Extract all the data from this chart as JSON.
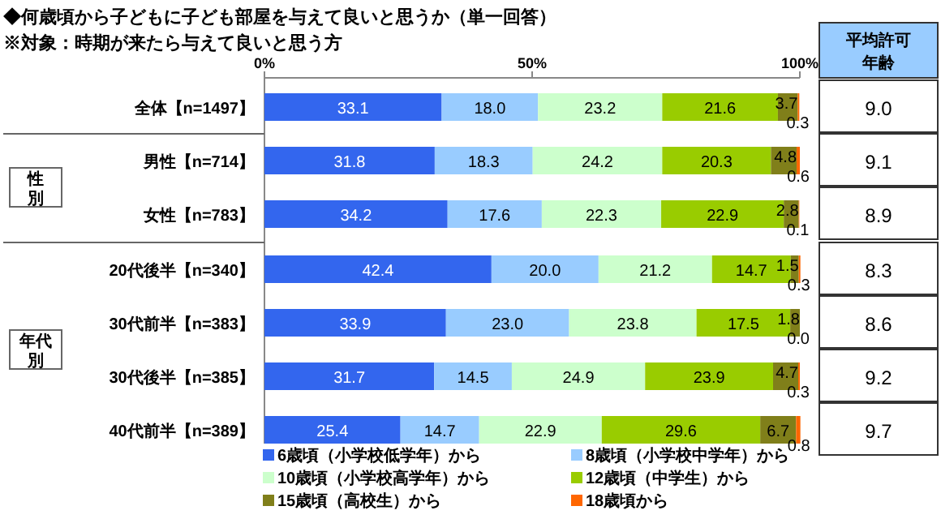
{
  "chart_data": [
    {
      "type": "bar",
      "orientation": "horizontal",
      "stacked": true,
      "title": "◆何歳頃から子どもに子ども部屋を与えて良いと思うか（単一回答）",
      "subtitle": "※対象：時期が来たら与えて良いと思う方",
      "categories": [
        "全体【n=1497】",
        "男性【n=714】",
        "女性【n=783】",
        "20代後半【n=340】",
        "30代前半【n=383】",
        "30代後半【n=385】",
        "40代前半【n=389】"
      ],
      "series": [
        {
          "name": "6歳頃（小学校低学年）から",
          "color": "#3366ee",
          "values": [
            33.1,
            31.8,
            34.2,
            42.4,
            33.9,
            31.7,
            25.4
          ],
          "value_labels": [
            "33.1",
            "31.8",
            "34.2",
            "42.4",
            "33.9",
            "31.7",
            "25.4"
          ]
        },
        {
          "name": "8歳頃（小学校中学年）から",
          "color": "#99ccff",
          "values": [
            18.0,
            18.3,
            17.6,
            20.0,
            23.0,
            14.5,
            14.7
          ],
          "value_labels": [
            "18.0",
            "18.3",
            "17.6",
            "20.0",
            "23.0",
            "14.5",
            "14.7"
          ]
        },
        {
          "name": "10歳頃（小学校高学年）から",
          "color": "#ccffcc",
          "values": [
            23.2,
            24.2,
            22.3,
            21.2,
            23.8,
            24.9,
            22.9
          ],
          "value_labels": [
            "23.2",
            "24.2",
            "22.3",
            "21.2",
            "23.8",
            "24.9",
            "22.9"
          ]
        },
        {
          "name": "12歳頃（中学生）から",
          "color": "#99cc00",
          "values": [
            21.6,
            20.3,
            22.9,
            14.7,
            17.5,
            23.9,
            29.6
          ],
          "value_labels": [
            "21.6",
            "20.3",
            "22.9",
            "14.7",
            "17.5",
            "23.9",
            "29.6"
          ]
        },
        {
          "name": "15歳頃（高校生）から",
          "color": "#807f1a",
          "values": [
            3.7,
            4.8,
            2.8,
            1.5,
            1.8,
            4.7,
            6.7
          ],
          "value_labels": [
            "3.7",
            "4.8",
            "2.8",
            "1.5",
            "1.8",
            "4.7",
            "6.7"
          ]
        },
        {
          "name": "18歳頃から",
          "color": "#ff6600",
          "values": [
            0.3,
            0.6,
            0.1,
            0.3,
            0.0,
            0.3,
            0.8
          ],
          "value_labels": [
            "0.3",
            "0.6",
            "0.1",
            "0.3",
            "0.0",
            "0.3",
            "0.8"
          ]
        }
      ],
      "xlim": [
        0,
        100
      ],
      "xticks": [
        {
          "value": 0,
          "label": "0%"
        },
        {
          "value": 50,
          "label": "50%"
        },
        {
          "value": 100,
          "label": "100%"
        }
      ],
      "legend": "bottom",
      "annotations": [
        "性別",
        "年代別"
      ]
    },
    {
      "type": "other",
      "title": "平均許可年齢",
      "categories": [
        null,
        null,
        null,
        null,
        null,
        null,
        null
      ],
      "value_labels": [
        "9.0",
        "9.1",
        "8.9",
        "8.3",
        "8.6",
        "9.2",
        "9.7"
      ]
    }
  ]
}
